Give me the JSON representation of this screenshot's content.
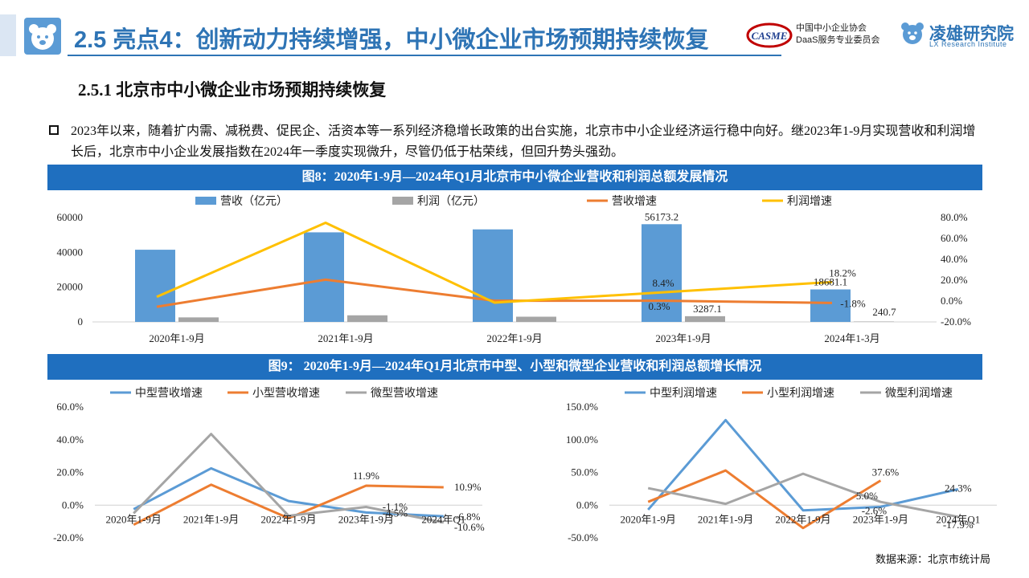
{
  "header": {
    "title": "2.5 亮点4：创新动力持续增强，中小微企业市场预期持续恢复",
    "org_logo_text": "CASME",
    "org_line1": "中国中小企业协会",
    "org_line2": "DaaS服务专业委员会",
    "lx_name": "凌雄研究院",
    "lx_sub": "LX Research Institute"
  },
  "section": {
    "title": "2.5.1 北京市中小微企业市场预期持续恢复"
  },
  "bullet": {
    "text": "2023年以来，随着扩内需、减税费、促民企、活资本等一系列经济稳增长政策的出台实施，北京市中小企业经济运行稳中向好。继2023年1-9月实现营收和利润增长后，北京市中小企业发展指数在2024年一季度实现微升，尽管仍低于枯荣线，但回升势头强劲。"
  },
  "colors": {
    "bar_blue": "#5b9bd5",
    "bar_gray": "#a5a5a5",
    "orange": "#ed7d31",
    "yellow": "#ffc000",
    "title_bar": "#1f6fbf",
    "header_blue": "#2e74b5"
  },
  "chart_data": [
    {
      "id": "fig8",
      "type": "bar+line",
      "title": "图8：2020年1-9月—2024年Q1月北京市中小微企业营收和利润总额发展情况",
      "categories": [
        "2020年1-9月",
        "2021年1-9月",
        "2022年1-9月",
        "2023年1-9月",
        "2024年1-3月"
      ],
      "bar_series": [
        {
          "name": "营收（亿元）",
          "values": [
            41500,
            51500,
            53200,
            56173.2,
            18681.1
          ]
        },
        {
          "name": "利润（亿元）",
          "values": [
            2600,
            3800,
            3000,
            3287.1,
            240.7
          ]
        }
      ],
      "line_series": [
        {
          "name": "营收增速",
          "values": [
            -5.5,
            20.5,
            0.3,
            0.3,
            -1.8
          ]
        },
        {
          "name": "利润增速",
          "values": [
            4.0,
            75.0,
            -1.5,
            8.4,
            18.2
          ]
        }
      ],
      "legend": [
        "营收（亿元）",
        "利润（亿元）",
        "营收增速",
        "利润增速"
      ],
      "yaxis_left": {
        "ticks": [
          "0",
          "20000",
          "40000",
          "60000"
        ],
        "range": [
          0,
          60000
        ]
      },
      "yaxis_right": {
        "ticks": [
          "-20.0%",
          "0.0%",
          "20.0%",
          "40.0%",
          "60.0%",
          "80.0%"
        ],
        "range": [
          -20,
          80
        ]
      },
      "data_labels": [
        "56173.2",
        "3287.1",
        "18681.1",
        "240.7",
        "8.4%",
        "0.3%",
        "18.2%",
        "-1.8%"
      ],
      "legend_position": "top"
    },
    {
      "id": "fig9",
      "title": "图9： 2020年1-9月—2024年Q1月北京市中型、小型和微型企业营收和利润总额增长情况",
      "charts": [
        {
          "type": "line",
          "categories": [
            "2020年1-9月",
            "2021年1-9月",
            "2022年1-9月",
            "2023年1-9月",
            "2024年Q1"
          ],
          "series": [
            {
              "name": "中型营收增速",
              "values": [
                -2.5,
                22.5,
                2.5,
                -4.5,
                -6.8
              ]
            },
            {
              "name": "小型营收增速",
              "values": [
                -12.0,
                12.5,
                -8.0,
                11.9,
                10.9
              ]
            },
            {
              "name": "微型营收增速",
              "values": [
                -5.0,
                43.5,
                -6.5,
                -1.1,
                -10.6
              ]
            }
          ],
          "yaxis": {
            "ticks": [
              "-20.0%",
              "0.0%",
              "20.0%",
              "40.0%",
              "60.0%"
            ],
            "range": [
              -20,
              60
            ]
          },
          "data_labels": [
            "11.9%",
            "10.9%",
            "-1.1%",
            "-4.5%",
            "-6.8%",
            "-10.6%"
          ],
          "legend_position": "top"
        },
        {
          "type": "line",
          "categories": [
            "2020年1-9月",
            "2021年1-9月",
            "2022年1-9月",
            "2023年1-9月",
            "2024年Q1"
          ],
          "series": [
            {
              "name": "中型利润增速",
              "values": [
                -7.0,
                130.0,
                -8.0,
                -2.6,
                24.3
              ]
            },
            {
              "name": "小型利润增速",
              "values": [
                5.0,
                53.0,
                -35.0,
                37.6,
                null
              ]
            },
            {
              "name": "微型利润增速",
              "values": [
                26.0,
                2.0,
                48.0,
                5.0,
                -17.9
              ]
            }
          ],
          "yaxis": {
            "ticks": [
              "-50.0%",
              "0.0%",
              "50.0%",
              "100.0%",
              "150.0%"
            ],
            "range": [
              -50,
              150
            ]
          },
          "data_labels": [
            "37.6%",
            "5.0%",
            "-2.6%",
            "24.3%",
            "-17.9%"
          ],
          "legend_position": "top"
        }
      ]
    }
  ],
  "footer": {
    "source": "数据来源：北京市统计局"
  }
}
